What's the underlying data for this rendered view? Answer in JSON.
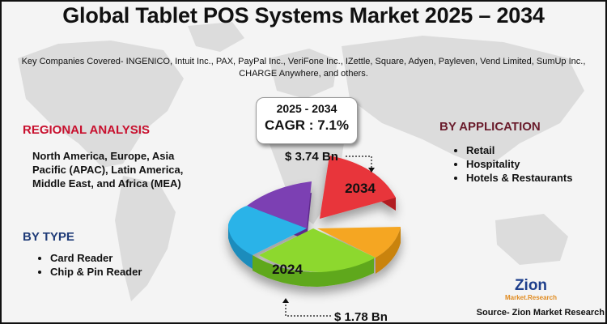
{
  "title": "Global Tablet POS Systems Market 2025 – 2034",
  "companies": "Key Companies Covered- INGENICO, Intuit Inc., PAX, PayPal Inc., VeriFone Inc., IZettle, Square, Adyen, Payleven, Vend Limited, SumUp Inc., CHARGE Anywhere, and others.",
  "cagr": {
    "years": "2025 - 2034",
    "value": "CAGR : 7.1%"
  },
  "regional": {
    "title": "REGIONAL ANALYSIS",
    "text": "North America, Europe, Asia Pacific (APAC), Latin America, Middle East, and Africa (MEA)"
  },
  "by_type": {
    "title": "BY TYPE",
    "items": [
      "Card Reader",
      "Chip & Pin Reader"
    ]
  },
  "by_application": {
    "title": "BY APPLICATION",
    "items": [
      "Retail",
      "Hospitality",
      "Hotels & Restaurants"
    ]
  },
  "logo": {
    "main": "Zion",
    "sub": "Market.Research"
  },
  "source": "Source- Zion Market Research",
  "colors": {
    "segment_2034": "#e8353a",
    "segment_orange": "#f5a623",
    "segment_2024": "#8dd82e",
    "segment_blue": "#2bb3e8",
    "segment_purple": "#7b3fb3"
  },
  "chart_data": {
    "type": "pie",
    "x": [
      2024,
      2034
    ],
    "values": [
      1.78,
      3.74
    ],
    "unit": "Bn",
    "data_labels": [
      "$ 1.78 Bn",
      "$ 3.74 Bn"
    ],
    "slice_labels": [
      "2034",
      "2024"
    ]
  }
}
